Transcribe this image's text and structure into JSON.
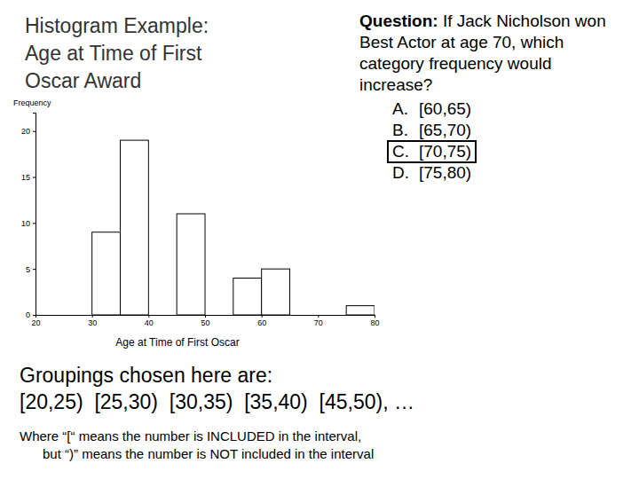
{
  "chart_data": {
    "type": "histogram",
    "title": "Histogram Example: Age at Time of First Oscar Award",
    "x_label": "Age at Time of First Oscar",
    "y_label": "Frequency",
    "bins": [
      20,
      25,
      30,
      35,
      40,
      45,
      50,
      55,
      60,
      65,
      70,
      75,
      80
    ],
    "values": [
      0,
      0,
      9,
      19,
      0,
      11,
      0,
      4,
      5,
      0,
      0,
      1
    ],
    "color": "#000000",
    "xlim": [
      20,
      80
    ],
    "xticks": [
      20,
      30,
      40,
      50,
      60,
      70,
      80
    ],
    "ylim": [
      0,
      22
    ],
    "yticks": [
      0,
      5,
      10,
      15,
      20
    ]
  },
  "slide": {
    "question": {
      "label": "Question:",
      "text": "If Jack Nicholson won Best Actor at age 70, which category frequency would increase?"
    },
    "options": [
      {
        "letter": "A.",
        "text": "[60,65)",
        "boxed": false
      },
      {
        "letter": "B.",
        "text": "[65,70)",
        "boxed": false
      },
      {
        "letter": "C.",
        "text": "[70,75)",
        "boxed": true
      },
      {
        "letter": "D.",
        "text": "[75,80)",
        "boxed": false
      }
    ],
    "groupings_heading": "Groupings chosen here are:",
    "groupings": "[20,25)  [25,30)  [30,35)  [35,40)  [45,50), …",
    "notes": [
      "Where “[“ means the number is INCLUDED in the interval,",
      "but “)” means the number is NOT included in the interval"
    ]
  }
}
